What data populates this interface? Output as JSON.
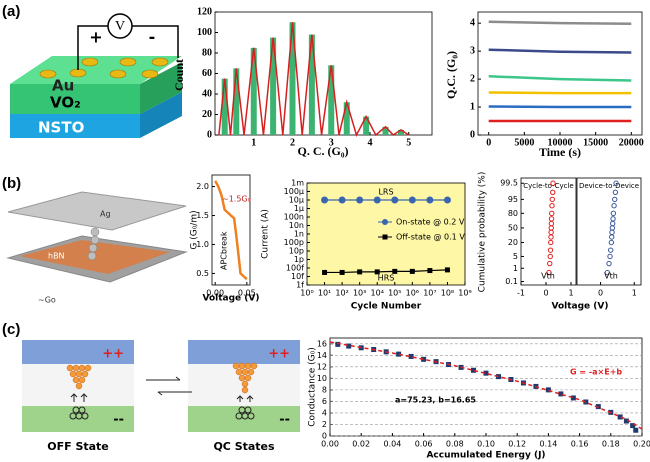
{
  "panel_labels": [
    "(a)",
    "(b)",
    "(c)"
  ],
  "diagram_a": {
    "source": "V",
    "plus": "+",
    "minus": "-",
    "electrode": "Au",
    "film": "VO₂",
    "substrate": "NSTO"
  },
  "diagram_b": {
    "top": "Ag",
    "middle": "hBN",
    "bottom": "~Go"
  },
  "diagram_c": {
    "plus": [
      "++",
      "++"
    ],
    "minus": [
      "--",
      "--"
    ],
    "labels": [
      "OFF State",
      "QC States"
    ]
  },
  "chart_data": [
    {
      "type": "bar",
      "y_label": "Count",
      "x_label": "Q. C. (G₀)",
      "color": "#3cb371",
      "x": [
        0.25,
        0.55,
        1.0,
        1.5,
        2.0,
        2.5,
        3.0,
        3.4,
        3.9,
        4.4,
        4.8
      ],
      "values": [
        55,
        65,
        85,
        95,
        110,
        98,
        68,
        32,
        18,
        8,
        5
      ],
      "fit": {
        "color": "#d62020",
        "x": [
          0.1,
          0.25,
          0.4,
          0.55,
          0.75,
          1.0,
          1.25,
          1.5,
          1.75,
          2.0,
          2.25,
          2.5,
          2.75,
          3.0,
          3.2,
          3.4,
          3.65,
          3.9,
          4.15,
          4.4,
          4.6,
          4.8,
          5.0
        ],
        "values": [
          0,
          55,
          0,
          65,
          0,
          85,
          0,
          95,
          0,
          110,
          0,
          98,
          0,
          68,
          0,
          32,
          0,
          18,
          0,
          8,
          0,
          5,
          0
        ]
      },
      "xlim": [
        0,
        5.6
      ],
      "xticks": [
        1,
        2,
        3,
        4,
        5
      ],
      "ylim": [
        0,
        120
      ],
      "yticks": [
        0,
        20,
        40,
        60,
        80,
        100,
        120
      ]
    },
    {
      "type": "line",
      "y_label": "Q.C. (G₀)",
      "x_label": "Time (s)",
      "x": [
        0,
        10000,
        20000
      ],
      "series": [
        {
          "color": "#8c8c8c",
          "values": [
            4.05,
            4.0,
            3.98
          ]
        },
        {
          "color": "#3a4a8a",
          "values": [
            3.05,
            2.98,
            2.95
          ]
        },
        {
          "color": "#3cc78a",
          "values": [
            2.1,
            2.0,
            1.95
          ]
        },
        {
          "color": "#f2c200",
          "values": [
            1.52,
            1.5,
            1.5
          ]
        },
        {
          "color": "#2a6cc0",
          "values": [
            1.02,
            1.0,
            1.0
          ]
        },
        {
          "color": "#e02020",
          "values": [
            0.5,
            0.5,
            0.5
          ]
        }
      ],
      "xlim": [
        -1500,
        21500
      ],
      "xticks": [
        0,
        5000,
        10000,
        15000,
        20000
      ],
      "ylim": [
        0,
        4.4
      ],
      "yticks": [
        0,
        1,
        2,
        3,
        4
      ]
    },
    {
      "type": "line",
      "y_label": "G (G₀/m)",
      "x_label": "Voltage (V)",
      "x": [
        0,
        0.005,
        0.01,
        0.015,
        0.02,
        0.025,
        0.03,
        0.035,
        0.04,
        0.05
      ],
      "series": [
        {
          "color": "#f08020",
          "values": [
            2.1,
            2.0,
            1.85,
            1.6,
            1.55,
            1.5,
            1.45,
            1.0,
            0.5,
            0.4
          ]
        }
      ],
      "annotations": [
        "~1.5G₀",
        "APCbreak"
      ],
      "xlim": [
        -0.005,
        0.055
      ],
      "xticks": [
        {
          "value": 0,
          "label": "0.00"
        },
        0.05
      ],
      "ylim": [
        0.3,
        2.2
      ],
      "yticks": [
        0.5,
        {
          "value": 1,
          "label": "1.0"
        },
        1.5,
        {
          "value": 2,
          "label": "2.0"
        }
      ]
    },
    {
      "type": "line",
      "y_label": "Current (A)",
      "x_label": "Cycle Number",
      "background": "#fdf7a6",
      "x": [
        10,
        100,
        1000,
        10000,
        100000,
        1000000,
        10000000,
        100000000
      ],
      "xscale": "log",
      "yscale": "log",
      "series": [
        {
          "name": "On-state @ 0.2 V",
          "color": "#3a66b0",
          "marker": "circle",
          "values": [
            1e-05,
            1e-05,
            1e-05,
            1e-05,
            1e-05,
            1e-05,
            1e-05,
            1e-05
          ]
        },
        {
          "name": "Off-state @ 0.1 V",
          "color": "#000000",
          "marker": "square",
          "values": [
            3e-14,
            3e-14,
            3.5e-14,
            3.5e-14,
            4e-14,
            4e-14,
            5e-14,
            6e-14
          ]
        }
      ],
      "annotations": [
        "LRS",
        "HRS"
      ],
      "xlim": [
        1,
        1000000000
      ],
      "xticks": [
        {
          "value": 1,
          "label": "10⁰"
        },
        {
          "value": 10,
          "label": "10¹"
        },
        {
          "value": 100,
          "label": "10²"
        },
        {
          "value": 1000,
          "label": "10³"
        },
        {
          "value": 10000,
          "label": "10⁴"
        },
        {
          "value": 100000,
          "label": "10⁵"
        },
        {
          "value": 1000000,
          "label": "10⁶"
        },
        {
          "value": 10000000,
          "label": "10⁷"
        },
        {
          "value": 100000000,
          "label": "10⁸"
        },
        {
          "value": 1000000000,
          "label": "10⁹"
        }
      ],
      "ylim": [
        1e-15,
        0.001
      ],
      "yticks": [
        {
          "value": 0.001,
          "label": "1m"
        },
        {
          "value": 0.0001,
          "label": "100μ"
        },
        {
          "value": 1e-05,
          "label": "10μ"
        },
        {
          "value": 1e-06,
          "label": "1μ"
        },
        {
          "value": 1e-07,
          "label": "100n"
        },
        {
          "value": 1e-08,
          "label": "10n"
        },
        {
          "value": 1e-09,
          "label": "1n"
        },
        {
          "value": 1e-10,
          "label": "100p"
        },
        {
          "value": 1e-11,
          "label": "10p"
        },
        {
          "value": 1e-12,
          "label": "1p"
        },
        {
          "value": 1e-13,
          "label": "100f"
        },
        {
          "value": 1e-14,
          "label": "10f"
        },
        {
          "value": 1e-15,
          "label": "1f"
        }
      ]
    },
    {
      "type": "scatter",
      "title": "Cycle-to-Cycle",
      "y_label": "Cumulative probability (%)",
      "x_label": "Voltage (V)",
      "yscale": "probit",
      "color": "#e02020",
      "marker": "open-circle",
      "x": [
        0.12,
        0.15,
        0.17,
        0.18,
        0.19,
        0.2,
        0.205,
        0.21,
        0.215,
        0.22,
        0.23,
        0.24,
        0.25,
        0.27,
        0.28
      ],
      "values": [
        0.5,
        2,
        5,
        10,
        20,
        30,
        40,
        50,
        60,
        70,
        80,
        90,
        95,
        98,
        99.5
      ],
      "annotations": [
        "Vth"
      ],
      "xlim": [
        -1,
        1.2
      ],
      "xticks": [
        -1,
        0,
        1
      ],
      "ylim": [
        0.05,
        99.8
      ],
      "yticks": [
        0.1,
        1,
        5,
        20,
        50,
        80,
        95,
        99.5
      ]
    },
    {
      "type": "scatter",
      "title": "Device-to-Device",
      "yscale": "probit",
      "color": "#3a5a9a",
      "marker": "open-circle",
      "x": [
        0.2,
        0.25,
        0.28,
        0.3,
        0.32,
        0.33,
        0.34,
        0.35,
        0.36,
        0.37,
        0.38,
        0.4,
        0.42,
        0.44,
        0.46
      ],
      "values": [
        0.5,
        2,
        5,
        10,
        20,
        30,
        40,
        50,
        60,
        70,
        80,
        90,
        95,
        98,
        99.5
      ],
      "annotations": [
        "Vth"
      ],
      "xlim": [
        -0.7,
        1.2
      ],
      "xticks": [
        0,
        1
      ],
      "ylim": [
        0.05,
        99.8
      ]
    },
    {
      "type": "scatter",
      "y_label": "Conductance (G₀)",
      "x_label": "Accumulated Energy (J)",
      "grid": true,
      "color": "#1f3a6e",
      "marker": "square",
      "x": [
        0.005,
        0.012,
        0.02,
        0.028,
        0.036,
        0.044,
        0.052,
        0.06,
        0.068,
        0.076,
        0.084,
        0.092,
        0.1,
        0.108,
        0.116,
        0.124,
        0.132,
        0.14,
        0.148,
        0.156,
        0.164,
        0.172,
        0.18,
        0.186,
        0.19,
        0.194,
        0.196
      ],
      "values": [
        15.9,
        15.6,
        15.3,
        15.0,
        14.6,
        14.2,
        13.8,
        13.3,
        12.9,
        12.4,
        11.9,
        11.4,
        10.9,
        10.3,
        9.8,
        9.2,
        8.6,
        8.0,
        7.3,
        6.6,
        5.9,
        5.1,
        4.1,
        3.3,
        2.6,
        1.8,
        1.0
      ],
      "fit": {
        "color": "#e02020",
        "x": [
          0,
          0.04,
          0.08,
          0.12,
          0.16,
          0.19,
          0.2
        ],
        "values": [
          16.3,
          14.4,
          12.2,
          9.5,
          6.3,
          2.9,
          1.2
        ]
      },
      "annotations": [
        "G = -a×E+b",
        "a=75.23, b=16.65"
      ],
      "xlim": [
        0,
        0.2
      ],
      "xticks": [
        {
          "value": 0,
          "label": "0.00"
        },
        0.02,
        0.04,
        0.06,
        0.08,
        {
          "value": 0.1,
          "label": "0.10"
        },
        0.12,
        0.14,
        0.16,
        0.18,
        {
          "value": 0.2,
          "label": "0.20"
        }
      ],
      "ylim": [
        0,
        17
      ],
      "yticks": [
        0,
        2,
        4,
        6,
        8,
        10,
        12,
        14,
        16
      ]
    }
  ]
}
